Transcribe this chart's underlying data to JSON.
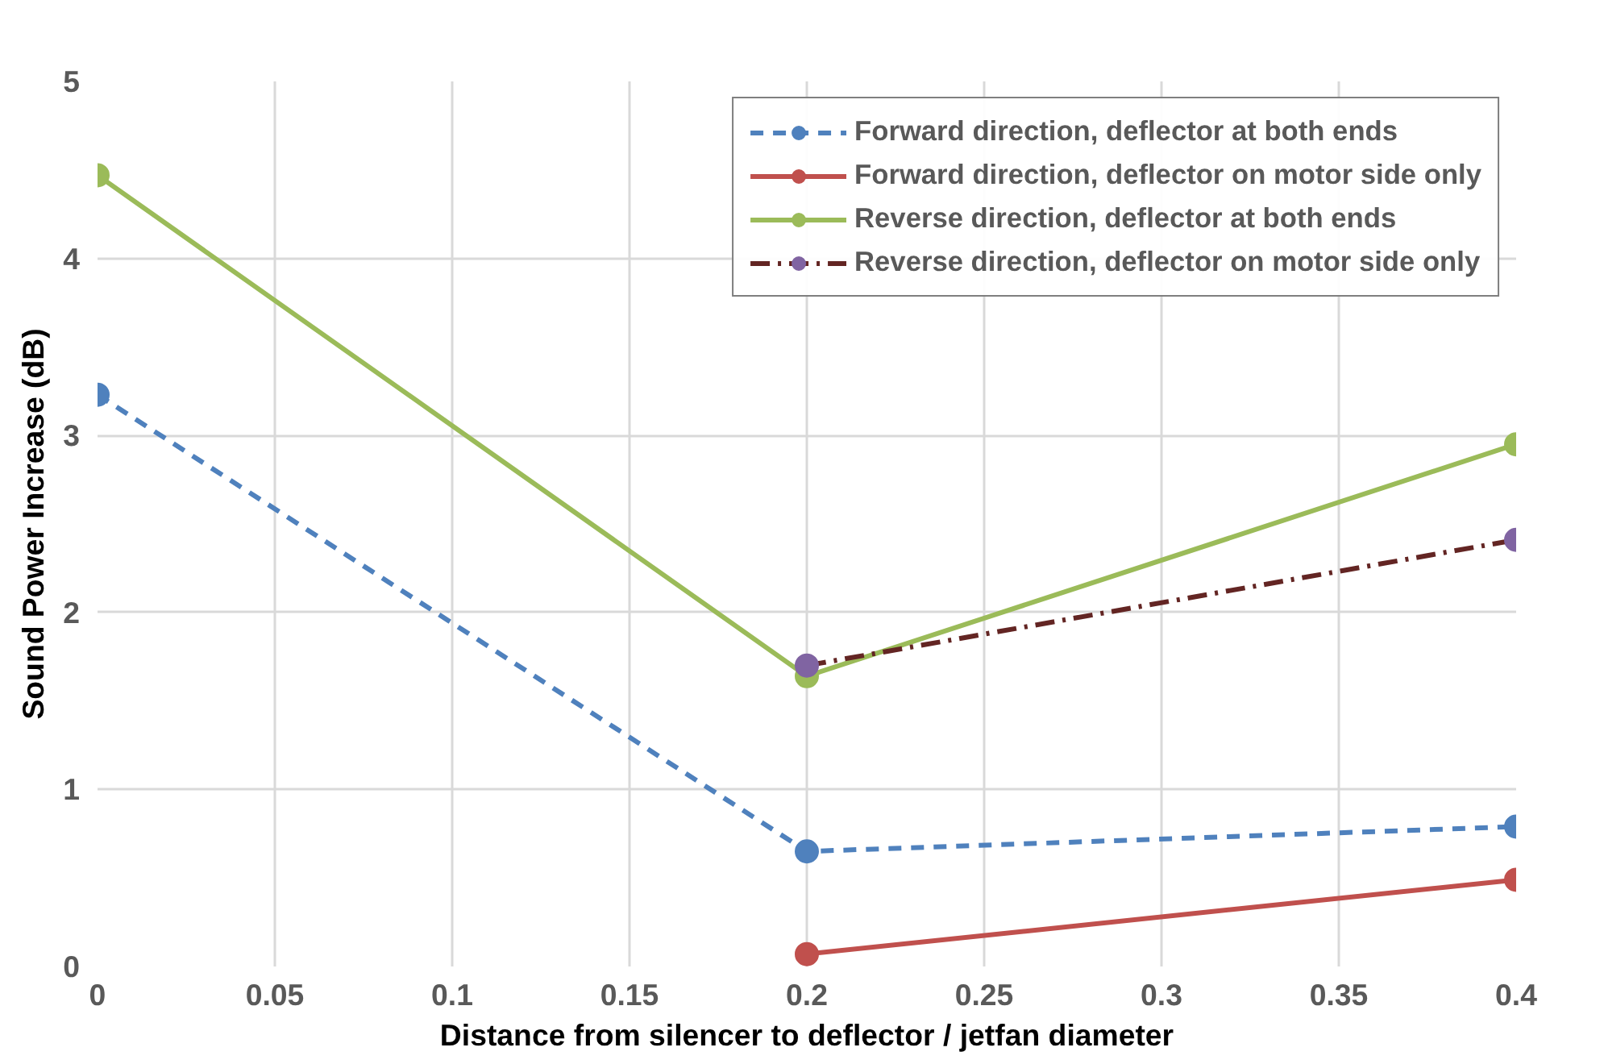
{
  "chart_data": {
    "type": "line",
    "xlabel": "Distance from silencer to deflector / jetfan diameter",
    "ylabel": "Sound Power Increase (dB)",
    "xlim": [
      0,
      0.4
    ],
    "ylim": [
      0,
      5
    ],
    "xticks": [
      0,
      0.05,
      0.1,
      0.15,
      0.2,
      0.25,
      0.3,
      0.35,
      0.4
    ],
    "yticks": [
      0,
      1,
      2,
      3,
      4,
      5
    ],
    "grid": true,
    "legend": "top right",
    "marker": "circle",
    "series": [
      {
        "name": "Forward direction, deflector at both ends",
        "color": "#4f81bd",
        "line_style": "dashed",
        "x": [
          0,
          0.2,
          0.4
        ],
        "values": [
          3.23,
          0.65,
          0.79
        ]
      },
      {
        "name": "Forward direction, deflector on motor side only",
        "color": "#c0504d",
        "line_style": "solid",
        "x": [
          0.2,
          0.4
        ],
        "values": [
          0.07,
          0.49
        ]
      },
      {
        "name": "Reverse direction, deflector at both ends",
        "color": "#9bbb59",
        "line_style": "solid",
        "x": [
          0,
          0.2,
          0.4
        ],
        "values": [
          4.47,
          1.64,
          2.95
        ]
      },
      {
        "name": "Reverse direction, deflector on motor side only",
        "color": "#632523",
        "colors": [
          "#8064a2",
          "#8064a2"
        ],
        "line_style": "dashdot",
        "x": [
          0.2,
          0.4
        ],
        "values": [
          1.7,
          2.41
        ]
      }
    ]
  }
}
